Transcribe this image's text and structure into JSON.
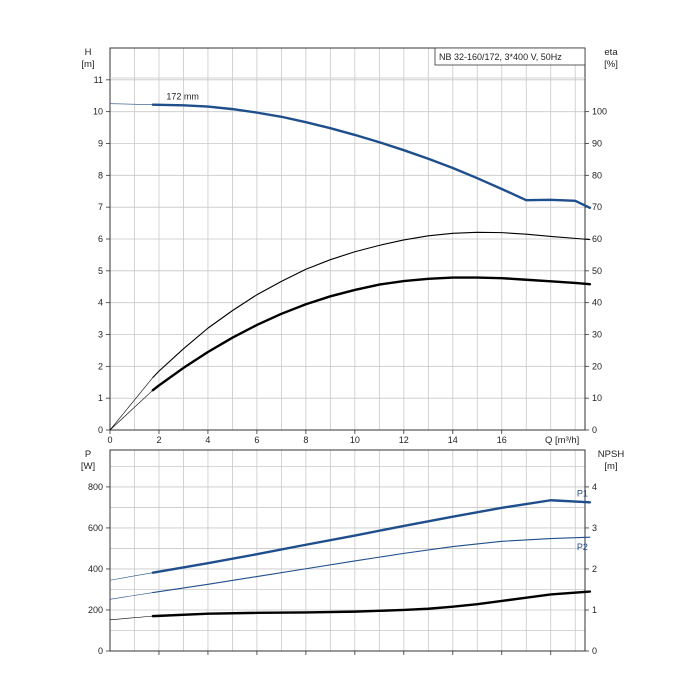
{
  "chart_data": [
    {
      "type": "line",
      "info_box": "NB 32-160/172, 3*400 V, 50Hz",
      "y_left": {
        "label_line1": "H",
        "label_line2": "[m]",
        "range": [
          0,
          12
        ],
        "ticks": [
          0,
          1,
          2,
          3,
          4,
          5,
          6,
          7,
          8,
          9,
          10,
          11
        ]
      },
      "y_right": {
        "label_line1": "eta",
        "label_line2": "[%]",
        "range": [
          0,
          120
        ],
        "ticks": [
          0,
          10,
          20,
          30,
          40,
          50,
          60,
          70,
          80,
          90,
          100
        ]
      },
      "x_axis": {
        "label": "Q [m³/h]",
        "range": [
          0,
          19.4
        ],
        "ticks": [
          0,
          2,
          4,
          6,
          8,
          10,
          12,
          14,
          16
        ]
      },
      "grid": true,
      "series": [
        {
          "name": "172 mm",
          "axis": "left",
          "color": "#1f4e8c",
          "style": "thick",
          "x": [
            1.75,
            3,
            4,
            5,
            6,
            7,
            8,
            9,
            10,
            11,
            12,
            13,
            14,
            15,
            16,
            17,
            18,
            19,
            19.6
          ],
          "y": [
            10.22,
            10.2,
            10.16,
            10.08,
            9.97,
            9.84,
            9.67,
            9.48,
            9.27,
            9.04,
            8.79,
            8.52,
            8.23,
            7.91,
            7.57,
            7.22,
            7.23,
            7.2,
            6.98
          ],
          "leadin_x": [
            0,
            1.75
          ],
          "leadin_y": [
            10.25,
            10.22
          ]
        },
        {
          "axis": "right",
          "color": "#000000",
          "style": "thin",
          "x": [
            1.75,
            2,
            3,
            4,
            5,
            6,
            7,
            8,
            9,
            10,
            11,
            12,
            13,
            14,
            15,
            16,
            17,
            18,
            19,
            19.6
          ],
          "y": [
            16.5,
            18.5,
            25.5,
            32,
            37.5,
            42.5,
            46.7,
            50.5,
            53.5,
            56,
            58,
            59.7,
            61,
            61.8,
            62.1,
            62,
            61.5,
            60.8,
            60.2,
            59.8
          ],
          "leadin_x": [
            0,
            1.75
          ],
          "leadin_y": [
            0,
            16.5
          ]
        },
        {
          "axis": "right",
          "color": "#000000",
          "style": "thick",
          "x": [
            1.75,
            2,
            3,
            4,
            5,
            6,
            7,
            8,
            9,
            10,
            11,
            12,
            13,
            14,
            15,
            16,
            17,
            18,
            19,
            19.6
          ],
          "y": [
            12.5,
            14,
            19.5,
            24.5,
            29,
            33,
            36.5,
            39.5,
            42,
            44,
            45.7,
            46.8,
            47.5,
            47.9,
            47.9,
            47.7,
            47.2,
            46.7,
            46.2,
            45.8
          ],
          "leadin_x": [
            0,
            1.75
          ],
          "leadin_y": [
            0,
            12.5
          ]
        }
      ]
    },
    {
      "type": "line",
      "y_left": {
        "label_line1": "P",
        "label_line2": "[W]",
        "range": [
          0,
          980
        ],
        "ticks": [
          0,
          200,
          400,
          600,
          800
        ]
      },
      "y_right": {
        "label_line1": "NPSH",
        "label_line2": "[m]",
        "range": [
          0,
          4.9
        ],
        "ticks": [
          0,
          1,
          2,
          3,
          4
        ]
      },
      "x_axis": {
        "range": [
          0,
          19.4
        ]
      },
      "grid": true,
      "series": [
        {
          "name": "P1",
          "axis": "left",
          "color": "#1f4e8c",
          "style": "thick",
          "x": [
            1.75,
            4,
            6,
            8,
            10,
            12,
            14,
            16,
            18,
            19.6
          ],
          "y": [
            382,
            428,
            472,
            518,
            563,
            610,
            655,
            698,
            735,
            725
          ],
          "leadin_x": [
            0,
            1.75
          ],
          "leadin_y": [
            345,
            382
          ]
        },
        {
          "name": "P2",
          "axis": "left",
          "color": "#1f4e8c",
          "style": "thin",
          "x": [
            1.75,
            4,
            6,
            8,
            10,
            12,
            14,
            16,
            18,
            19.6
          ],
          "y": [
            285,
            325,
            363,
            401,
            439,
            476,
            509,
            535,
            548,
            555
          ],
          "leadin_x": [
            0,
            1.75
          ],
          "leadin_y": [
            252,
            285
          ]
        },
        {
          "axis": "right",
          "color": "#000000",
          "style": "thick",
          "x": [
            1.75,
            4,
            6,
            8,
            10,
            12,
            13,
            14,
            15,
            16,
            17,
            18,
            19.6
          ],
          "y": [
            0.85,
            0.91,
            0.93,
            0.94,
            0.96,
            1.0,
            1.03,
            1.08,
            1.14,
            1.22,
            1.3,
            1.38,
            1.45
          ],
          "leadin_x": [
            0,
            1.75
          ],
          "leadin_y": [
            0.76,
            0.85
          ]
        }
      ]
    }
  ]
}
